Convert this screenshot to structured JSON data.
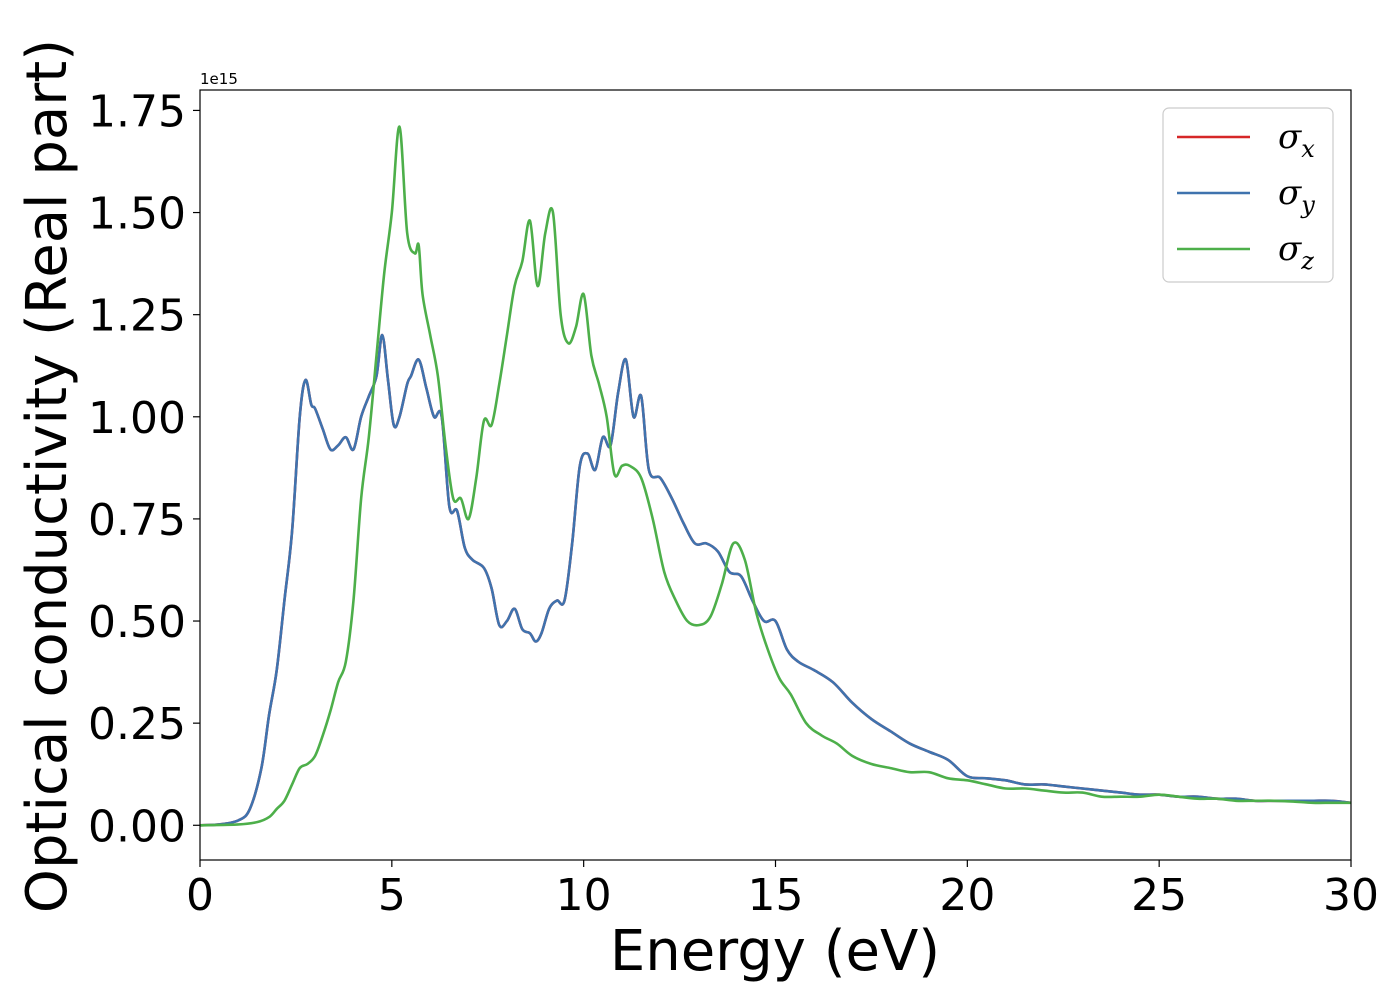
{
  "chart_data": {
    "type": "line",
    "xlabel": "Energy (eV)",
    "ylabel": "Optical conductivity (Real part)",
    "y_offset_text": "1e15",
    "xlim": [
      0,
      30
    ],
    "ylim": [
      -0.085,
      1.8
    ],
    "x_ticks": [
      0,
      5,
      10,
      15,
      20,
      25,
      30
    ],
    "x_tick_labels": [
      "0",
      "5",
      "10",
      "15",
      "20",
      "25",
      "30"
    ],
    "y_ticks": [
      0.0,
      0.25,
      0.5,
      0.75,
      1.0,
      1.25,
      1.5,
      1.75
    ],
    "y_tick_labels": [
      "0.00",
      "0.25",
      "0.50",
      "0.75",
      "1.00",
      "1.25",
      "1.50",
      "1.75"
    ],
    "grid": false,
    "legend_position": "top-right",
    "series": [
      {
        "name": "σx",
        "symbol": "σ",
        "subscript": "x",
        "color": "#d62728",
        "x": [
          0,
          0.5,
          1.0,
          1.3,
          1.6,
          1.8,
          2.0,
          2.2,
          2.4,
          2.6,
          2.75,
          2.9,
          3.0,
          3.2,
          3.4,
          3.6,
          3.8,
          4.0,
          4.2,
          4.4,
          4.6,
          4.75,
          4.9,
          5.05,
          5.2,
          5.4,
          5.5,
          5.7,
          5.9,
          6.1,
          6.3,
          6.5,
          6.7,
          6.9,
          7.1,
          7.4,
          7.6,
          7.8,
          8.0,
          8.2,
          8.4,
          8.6,
          8.75,
          8.9,
          9.1,
          9.3,
          9.5,
          9.7,
          9.9,
          10.1,
          10.3,
          10.5,
          10.7,
          10.9,
          11.1,
          11.3,
          11.5,
          11.7,
          12.0,
          12.3,
          12.6,
          12.9,
          13.2,
          13.5,
          13.8,
          14.1,
          14.4,
          14.7,
          15.0,
          15.3,
          15.6,
          16.0,
          16.5,
          17.0,
          17.5,
          18.0,
          18.5,
          19.0,
          19.5,
          20.0,
          20.5,
          21.0,
          21.5,
          22.0,
          22.5,
          23.0,
          23.5,
          24.0,
          24.5,
          25.0,
          25.5,
          26.0,
          26.5,
          27.0,
          27.5,
          28.0,
          28.5,
          29.0,
          29.5,
          30.0
        ],
        "values": [
          0.0,
          0.002,
          0.012,
          0.04,
          0.14,
          0.27,
          0.38,
          0.55,
          0.72,
          1.0,
          1.09,
          1.03,
          1.02,
          0.97,
          0.92,
          0.93,
          0.95,
          0.92,
          1.0,
          1.05,
          1.1,
          1.2,
          1.09,
          0.98,
          1.0,
          1.08,
          1.1,
          1.14,
          1.07,
          1.0,
          1.0,
          0.78,
          0.77,
          0.68,
          0.65,
          0.63,
          0.58,
          0.49,
          0.5,
          0.53,
          0.48,
          0.47,
          0.45,
          0.47,
          0.53,
          0.55,
          0.55,
          0.69,
          0.88,
          0.91,
          0.87,
          0.95,
          0.93,
          1.06,
          1.14,
          1.0,
          1.05,
          0.87,
          0.85,
          0.8,
          0.74,
          0.69,
          0.69,
          0.67,
          0.62,
          0.61,
          0.55,
          0.5,
          0.5,
          0.43,
          0.4,
          0.38,
          0.35,
          0.3,
          0.26,
          0.23,
          0.2,
          0.18,
          0.16,
          0.12,
          0.115,
          0.11,
          0.1,
          0.1,
          0.095,
          0.09,
          0.085,
          0.08,
          0.075,
          0.075,
          0.07,
          0.07,
          0.065,
          0.065,
          0.06,
          0.06,
          0.06,
          0.06,
          0.06,
          0.055
        ]
      },
      {
        "name": "σy",
        "symbol": "σ",
        "subscript": "y",
        "color": "#3f73ae",
        "x": [
          0,
          0.5,
          1.0,
          1.3,
          1.6,
          1.8,
          2.0,
          2.2,
          2.4,
          2.6,
          2.75,
          2.9,
          3.0,
          3.2,
          3.4,
          3.6,
          3.8,
          4.0,
          4.2,
          4.4,
          4.6,
          4.75,
          4.9,
          5.05,
          5.2,
          5.4,
          5.5,
          5.7,
          5.9,
          6.1,
          6.3,
          6.5,
          6.7,
          6.9,
          7.1,
          7.4,
          7.6,
          7.8,
          8.0,
          8.2,
          8.4,
          8.6,
          8.75,
          8.9,
          9.1,
          9.3,
          9.5,
          9.7,
          9.9,
          10.1,
          10.3,
          10.5,
          10.7,
          10.9,
          11.1,
          11.3,
          11.5,
          11.7,
          12.0,
          12.3,
          12.6,
          12.9,
          13.2,
          13.5,
          13.8,
          14.1,
          14.4,
          14.7,
          15.0,
          15.3,
          15.6,
          16.0,
          16.5,
          17.0,
          17.5,
          18.0,
          18.5,
          19.0,
          19.5,
          20.0,
          20.5,
          21.0,
          21.5,
          22.0,
          22.5,
          23.0,
          23.5,
          24.0,
          24.5,
          25.0,
          25.5,
          26.0,
          26.5,
          27.0,
          27.5,
          28.0,
          28.5,
          29.0,
          29.5,
          30.0
        ],
        "values": [
          0.0,
          0.002,
          0.012,
          0.04,
          0.14,
          0.27,
          0.38,
          0.55,
          0.72,
          1.0,
          1.09,
          1.03,
          1.02,
          0.97,
          0.92,
          0.93,
          0.95,
          0.92,
          1.0,
          1.05,
          1.1,
          1.2,
          1.09,
          0.98,
          1.0,
          1.08,
          1.1,
          1.14,
          1.07,
          1.0,
          1.0,
          0.78,
          0.77,
          0.68,
          0.65,
          0.63,
          0.58,
          0.49,
          0.5,
          0.53,
          0.48,
          0.47,
          0.45,
          0.47,
          0.53,
          0.55,
          0.55,
          0.69,
          0.88,
          0.91,
          0.87,
          0.95,
          0.93,
          1.06,
          1.14,
          1.0,
          1.05,
          0.87,
          0.85,
          0.8,
          0.74,
          0.69,
          0.69,
          0.67,
          0.62,
          0.61,
          0.55,
          0.5,
          0.5,
          0.43,
          0.4,
          0.38,
          0.35,
          0.3,
          0.26,
          0.23,
          0.2,
          0.18,
          0.16,
          0.12,
          0.115,
          0.11,
          0.1,
          0.1,
          0.095,
          0.09,
          0.085,
          0.08,
          0.075,
          0.075,
          0.07,
          0.07,
          0.065,
          0.065,
          0.06,
          0.06,
          0.06,
          0.06,
          0.06,
          0.055
        ]
      },
      {
        "name": "σz",
        "symbol": "σ",
        "subscript": "z",
        "color": "#4daf4a",
        "x": [
          0,
          1.0,
          1.5,
          1.8,
          2.0,
          2.2,
          2.4,
          2.6,
          2.8,
          3.0,
          3.2,
          3.4,
          3.6,
          3.8,
          4.0,
          4.2,
          4.4,
          4.6,
          4.8,
          5.0,
          5.2,
          5.4,
          5.6,
          5.7,
          5.8,
          6.0,
          6.2,
          6.4,
          6.6,
          6.8,
          7.0,
          7.2,
          7.4,
          7.6,
          7.8,
          8.0,
          8.2,
          8.4,
          8.6,
          8.8,
          9.0,
          9.2,
          9.4,
          9.6,
          9.8,
          10.0,
          10.2,
          10.4,
          10.6,
          10.8,
          11.0,
          11.2,
          11.5,
          11.8,
          12.1,
          12.4,
          12.7,
          13.0,
          13.3,
          13.6,
          13.9,
          14.2,
          14.5,
          14.8,
          15.1,
          15.4,
          15.8,
          16.2,
          16.6,
          17.0,
          17.5,
          18.0,
          18.5,
          19.0,
          19.5,
          20.0,
          20.5,
          21.0,
          21.5,
          22.0,
          22.5,
          23.0,
          23.5,
          24.0,
          24.5,
          25.0,
          25.5,
          26.0,
          26.5,
          27.0,
          27.5,
          28.0,
          28.5,
          29.0,
          29.5,
          30.0
        ],
        "values": [
          0.0,
          0.002,
          0.008,
          0.02,
          0.04,
          0.06,
          0.1,
          0.14,
          0.15,
          0.17,
          0.22,
          0.28,
          0.35,
          0.4,
          0.55,
          0.8,
          0.95,
          1.15,
          1.35,
          1.5,
          1.71,
          1.45,
          1.4,
          1.42,
          1.3,
          1.2,
          1.1,
          0.93,
          0.8,
          0.8,
          0.75,
          0.85,
          0.99,
          0.98,
          1.08,
          1.2,
          1.32,
          1.38,
          1.48,
          1.32,
          1.45,
          1.5,
          1.25,
          1.18,
          1.22,
          1.3,
          1.15,
          1.08,
          1.0,
          0.86,
          0.88,
          0.88,
          0.85,
          0.75,
          0.62,
          0.55,
          0.5,
          0.49,
          0.51,
          0.59,
          0.69,
          0.65,
          0.52,
          0.43,
          0.36,
          0.32,
          0.25,
          0.22,
          0.2,
          0.17,
          0.15,
          0.14,
          0.13,
          0.13,
          0.115,
          0.11,
          0.1,
          0.09,
          0.09,
          0.085,
          0.08,
          0.08,
          0.07,
          0.07,
          0.07,
          0.075,
          0.07,
          0.065,
          0.065,
          0.06,
          0.06,
          0.06,
          0.058,
          0.055,
          0.055,
          0.055
        ]
      }
    ]
  }
}
